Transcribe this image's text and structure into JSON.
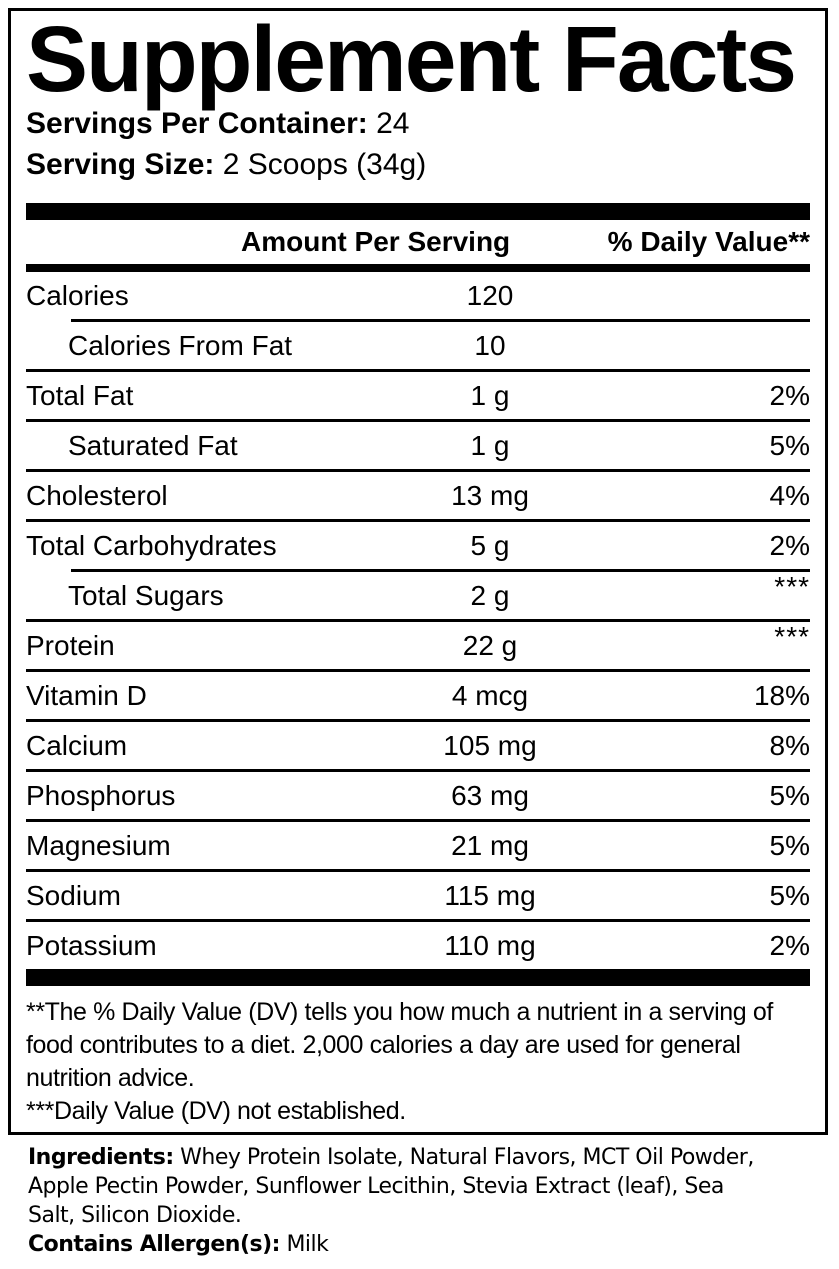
{
  "panel": {
    "title": "Supplement Facts",
    "servings_label": "Servings Per Container:",
    "servings_value": "24",
    "serving_size_label": "Serving Size:",
    "serving_size_value": "2 Scoops (34g)"
  },
  "table": {
    "amount_header": "Amount Per Serving",
    "dv_header": "% Daily Value**",
    "rows": [
      {
        "name": "Calories",
        "amount": "120",
        "dv": ""
      },
      {
        "name": "Calories From Fat",
        "amount": "10",
        "dv": ""
      },
      {
        "name": "Total Fat",
        "amount": "1 g",
        "dv": "2%"
      },
      {
        "name": "Saturated Fat",
        "amount": "1 g",
        "dv": "5%"
      },
      {
        "name": "Cholesterol",
        "amount": "13 mg",
        "dv": "4%"
      },
      {
        "name": "Total Carbohydrates",
        "amount": "5 g",
        "dv": "2%"
      },
      {
        "name": "Total Sugars",
        "amount": "2 g",
        "dv": "***"
      },
      {
        "name": "Protein",
        "amount": "22 g",
        "dv": "***"
      },
      {
        "name": "Vitamin D",
        "amount": "4 mcg",
        "dv": "18%"
      },
      {
        "name": "Calcium",
        "amount": "105 mg",
        "dv": "8%"
      },
      {
        "name": "Phosphorus",
        "amount": "63 mg",
        "dv": "5%"
      },
      {
        "name": "Magnesium",
        "amount": "21 mg",
        "dv": "5%"
      },
      {
        "name": "Sodium",
        "amount": "115 mg",
        "dv": "5%"
      },
      {
        "name": "Potassium",
        "amount": "110 mg",
        "dv": "2%"
      }
    ]
  },
  "footnotes": {
    "dv_note_lines": [
      "**The % Daily Value (DV) tells you how much a nutrient in a serving of",
      "food contributes to a diet. 2,000 calories a day are used for general",
      "nutrition advice."
    ],
    "not_established": "***Daily Value (DV) not established."
  },
  "ingredients": {
    "label": "Ingredients:",
    "lines": [
      "Whey Protein Isolate, Natural Flavors, MCT Oil Powder,",
      "Apple Pectin Powder, Sunflower Lecithin, Stevia Extract (leaf), Sea",
      "Salt, Silicon Dioxide."
    ]
  },
  "allergens": {
    "label": "Contains Allergen(s):",
    "value": "Milk"
  },
  "colors": {
    "text": "#000000",
    "background": "#ffffff"
  }
}
